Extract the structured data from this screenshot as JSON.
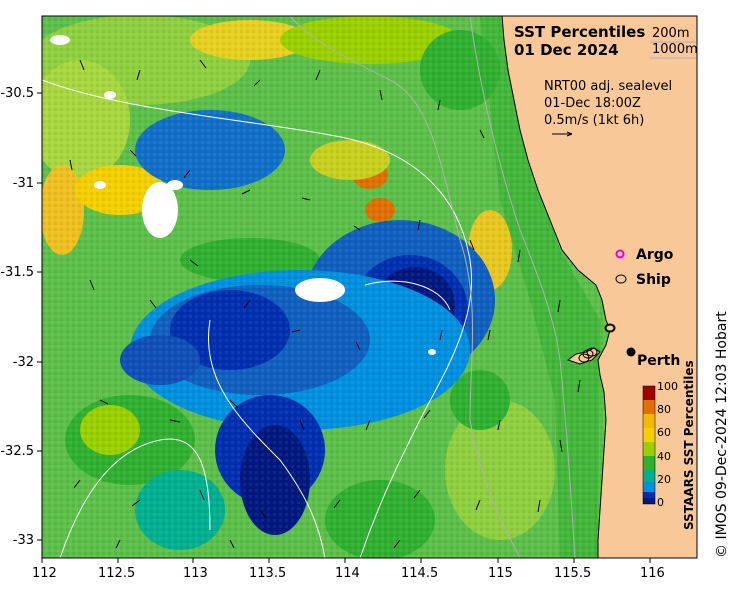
{
  "title": {
    "line1": "SST Percentiles",
    "line2": "01 Dec 2024"
  },
  "contour_key": {
    "shallow": "200m",
    "deep": "1000m"
  },
  "current_info": {
    "line1": "NRT00 adj. sealevel",
    "line2": "01-Dec 18:00Z",
    "line3": "0.5m/s (1kt 6h)"
  },
  "legend": {
    "argo": "Argo",
    "ship": "Ship",
    "city": "Perth",
    "argo_color": "#e600e6",
    "ship_color": "#000000"
  },
  "colorbar": {
    "title": "SSTAARS SST Percentiles",
    "ticks": [
      "100",
      "80",
      "60",
      "40",
      "20",
      "0"
    ],
    "colors": [
      "#a00000",
      "#e07000",
      "#f5d000",
      "#9bd000",
      "#30b030",
      "#00b090",
      "#0090e0",
      "#0030b0",
      "#001880"
    ]
  },
  "axes": {
    "lon_ticks": [
      "112",
      "112.5",
      "113",
      "113.5",
      "114",
      "114.5",
      "115",
      "115.5",
      "116"
    ],
    "lat_ticks": [
      "-30.5",
      "-31",
      "-31.5",
      "-32",
      "-32.5",
      "-33"
    ]
  },
  "credit": "© IMOS 09-Dec-2024 12:03 Hobart",
  "colors": {
    "land": "#f8c898",
    "missing": "#ffffff"
  }
}
